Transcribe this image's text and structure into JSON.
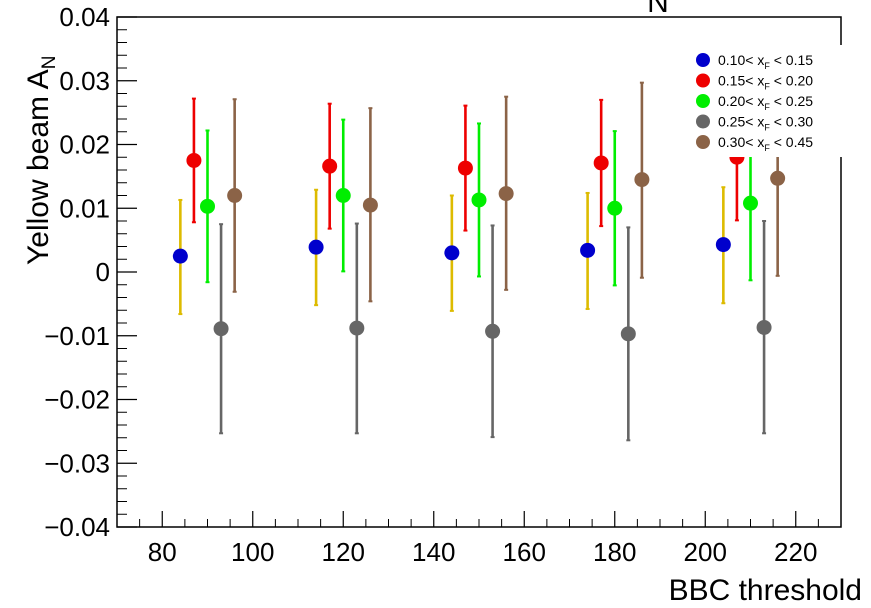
{
  "chart_data": {
    "type": "scatter",
    "title": "N",
    "xlabel": "BBC threshold",
    "ylabel": "Yellow beam A",
    "ylabel_sub": "N",
    "xlim": [
      70,
      230
    ],
    "ylim": [
      -0.04,
      0.04
    ],
    "x_ticks": [
      80,
      100,
      120,
      140,
      160,
      180,
      200,
      220
    ],
    "x_tick_labels": [
      "80",
      "100",
      "120",
      "140",
      "160",
      "180",
      "200",
      "220"
    ],
    "y_ticks": [
      -0.04,
      -0.03,
      -0.02,
      -0.01,
      0,
      0.01,
      0.02,
      0.03,
      0.04
    ],
    "y_tick_labels": [
      "−0.04",
      "−0.03",
      "−0.02",
      "−0.01",
      "0",
      "0.01",
      "0.02",
      "0.03",
      "0.04"
    ],
    "grid": false,
    "legend_position": "top-right",
    "series": [
      {
        "name": "0.10< x_F < 0.15",
        "legend_lo": "0.10< x",
        "legend_hi": " < 0.15",
        "marker_color": "#0000cc",
        "error_color": "#ddbb00",
        "points": [
          {
            "x": 84,
            "y": 0.0025,
            "ylo": -0.0066,
            "yhi": 0.0113
          },
          {
            "x": 114,
            "y": 0.0039,
            "ylo": -0.0052,
            "yhi": 0.0129
          },
          {
            "x": 144,
            "y": 0.003,
            "ylo": -0.0061,
            "yhi": 0.012
          },
          {
            "x": 174,
            "y": 0.0034,
            "ylo": -0.0058,
            "yhi": 0.0124
          },
          {
            "x": 204,
            "y": 0.0043,
            "ylo": -0.0049,
            "yhi": 0.0133
          }
        ]
      },
      {
        "name": "0.15< x_F < 0.20",
        "legend_lo": "0.15< x",
        "legend_hi": " < 0.20",
        "marker_color": "#ee0000",
        "error_color": "#ee0000",
        "points": [
          {
            "x": 87,
            "y": 0.0175,
            "ylo": 0.0078,
            "yhi": 0.0272
          },
          {
            "x": 117,
            "y": 0.0166,
            "ylo": 0.0068,
            "yhi": 0.0264
          },
          {
            "x": 147,
            "y": 0.0163,
            "ylo": 0.0065,
            "yhi": 0.0261
          },
          {
            "x": 177,
            "y": 0.0171,
            "ylo": 0.0072,
            "yhi": 0.027
          },
          {
            "x": 207,
            "y": 0.018,
            "ylo": 0.0081,
            "yhi": 0.0279
          }
        ]
      },
      {
        "name": "0.20< x_F < 0.25",
        "legend_lo": "0.20< x",
        "legend_hi": " < 0.25",
        "marker_color": "#00ee00",
        "error_color": "#00ee00",
        "points": [
          {
            "x": 90,
            "y": 0.0103,
            "ylo": -0.0016,
            "yhi": 0.0222
          },
          {
            "x": 120,
            "y": 0.012,
            "ylo": 0.0001,
            "yhi": 0.0239
          },
          {
            "x": 150,
            "y": 0.0113,
            "ylo": -0.0007,
            "yhi": 0.0233
          },
          {
            "x": 180,
            "y": 0.01,
            "ylo": -0.0021,
            "yhi": 0.0221
          },
          {
            "x": 210,
            "y": 0.0108,
            "ylo": -0.0013,
            "yhi": 0.0229
          }
        ]
      },
      {
        "name": "0.25< x_F < 0.30",
        "legend_lo": "0.25< x",
        "legend_hi": " < 0.30",
        "marker_color": "#666666",
        "error_color": "#666666",
        "points": [
          {
            "x": 93,
            "y": -0.0089,
            "ylo": -0.0253,
            "yhi": 0.0075
          },
          {
            "x": 123,
            "y": -0.0088,
            "ylo": -0.0253,
            "yhi": 0.0076
          },
          {
            "x": 153,
            "y": -0.0093,
            "ylo": -0.0259,
            "yhi": 0.0073
          },
          {
            "x": 183,
            "y": -0.0097,
            "ylo": -0.0264,
            "yhi": 0.007
          },
          {
            "x": 213,
            "y": -0.0087,
            "ylo": -0.0253,
            "yhi": 0.008
          }
        ]
      },
      {
        "name": "0.30< x_F < 0.45",
        "legend_lo": "0.30< x",
        "legend_hi": " < 0.45",
        "marker_color": "#8b6347",
        "error_color": "#8b6347",
        "points": [
          {
            "x": 96,
            "y": 0.012,
            "ylo": -0.0031,
            "yhi": 0.0271
          },
          {
            "x": 126,
            "y": 0.0105,
            "ylo": -0.0046,
            "yhi": 0.0257
          },
          {
            "x": 156,
            "y": 0.0123,
            "ylo": -0.0028,
            "yhi": 0.0275
          },
          {
            "x": 186,
            "y": 0.0145,
            "ylo": -0.0009,
            "yhi": 0.0297
          },
          {
            "x": 216,
            "y": 0.0147,
            "ylo": -0.0006,
            "yhi": 0.03
          }
        ]
      }
    ]
  }
}
